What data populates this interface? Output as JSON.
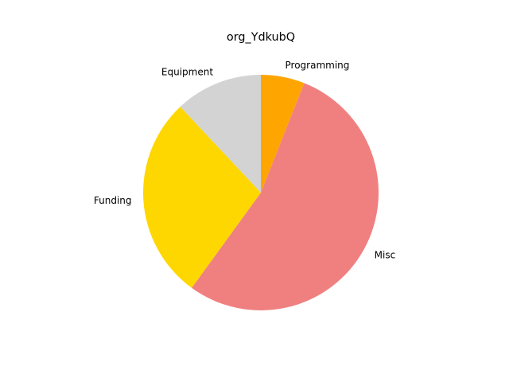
{
  "chart_data": {
    "type": "pie",
    "title": "org_YdkubQ",
    "start_angle_deg": 90,
    "direction": "clockwise",
    "slices": [
      {
        "label": "Programming",
        "value": 6,
        "color": "#ffa500"
      },
      {
        "label": "Misc",
        "value": 54,
        "color": "#f08080"
      },
      {
        "label": "Funding",
        "value": 28,
        "color": "#ffd700"
      },
      {
        "label": "Equipment",
        "value": 12,
        "color": "#d3d3d3"
      }
    ]
  }
}
